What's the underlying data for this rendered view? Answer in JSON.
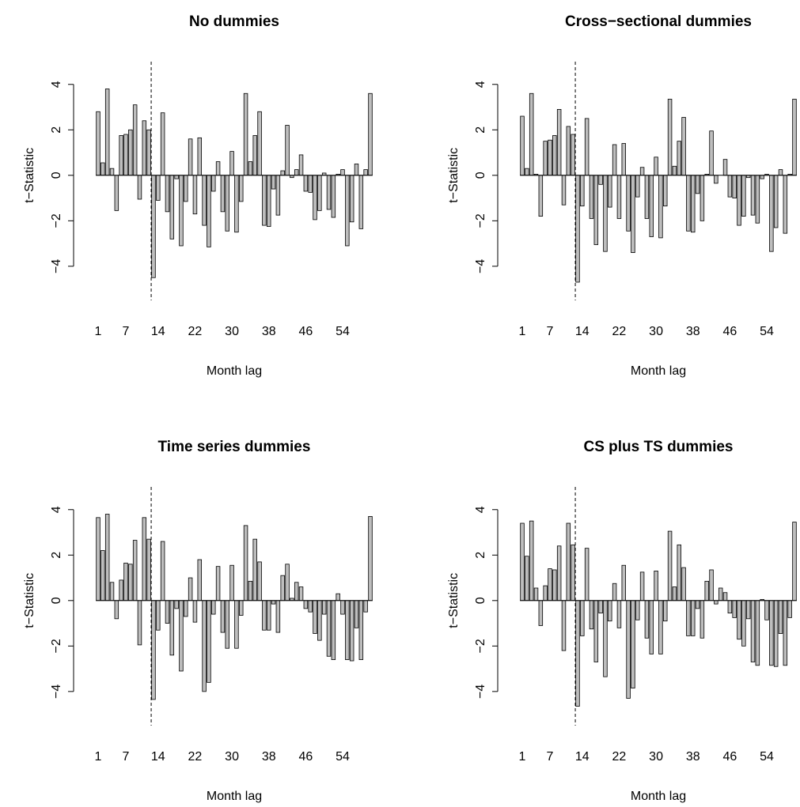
{
  "chart_data": [
    {
      "type": "bar",
      "title": "No dummies",
      "xlabel": "Month lag",
      "ylabel": "t−Statistic",
      "categories": [
        "1",
        null,
        null,
        null,
        null,
        null,
        "7",
        null,
        null,
        null,
        null,
        null,
        null,
        "14",
        null,
        null,
        null,
        null,
        null,
        null,
        null,
        "22",
        null,
        null,
        null,
        null,
        null,
        null,
        null,
        "30",
        null,
        null,
        null,
        null,
        null,
        null,
        null,
        "38",
        null,
        null,
        null,
        null,
        null,
        null,
        null,
        "46",
        null,
        null,
        null,
        null,
        null,
        null,
        null,
        "54",
        null,
        null,
        null,
        null,
        null,
        null
      ],
      "values": [
        2.8,
        0.55,
        3.8,
        0.3,
        -1.55,
        1.75,
        1.8,
        2.0,
        3.1,
        -1.05,
        2.4,
        2.0,
        -4.5,
        -1.1,
        2.75,
        -1.6,
        -2.8,
        -0.15,
        -3.1,
        -1.15,
        1.6,
        -1.7,
        1.65,
        -2.2,
        -3.15,
        -0.7,
        0.6,
        -1.6,
        -2.45,
        1.05,
        -2.5,
        -1.15,
        3.6,
        0.6,
        1.75,
        2.8,
        -2.2,
        -2.25,
        -0.6,
        -1.75,
        0.2,
        2.2,
        -0.1,
        0.25,
        0.9,
        -0.7,
        -0.75,
        -1.95,
        -1.55,
        0.1,
        -1.5,
        -1.85,
        0.05,
        0.25,
        -3.1,
        -2.05,
        0.5,
        -2.35,
        0.25,
        3.6
      ],
      "color": "#bebebe",
      "reference_line_x": 12.5,
      "ylim": [
        -5.5,
        5
      ],
      "yticks": [
        {
          "value": -4,
          "label": "−4"
        },
        {
          "value": -2,
          "label": "−2"
        },
        0,
        2,
        4
      ]
    },
    {
      "type": "bar",
      "title": "Cross−sectional dummies",
      "xlabel": "Month lag",
      "ylabel": "t−Statistic",
      "categories": [
        "1",
        null,
        null,
        null,
        null,
        null,
        "7",
        null,
        null,
        null,
        null,
        null,
        null,
        "14",
        null,
        null,
        null,
        null,
        null,
        null,
        null,
        "22",
        null,
        null,
        null,
        null,
        null,
        null,
        null,
        "30",
        null,
        null,
        null,
        null,
        null,
        null,
        null,
        "38",
        null,
        null,
        null,
        null,
        null,
        null,
        null,
        "46",
        null,
        null,
        null,
        null,
        null,
        null,
        null,
        "54",
        null,
        null,
        null,
        null,
        null,
        null
      ],
      "values": [
        2.6,
        0.3,
        3.6,
        0.05,
        -1.8,
        1.5,
        1.55,
        1.75,
        2.9,
        -1.3,
        2.15,
        1.8,
        -4.7,
        -1.35,
        2.5,
        -1.9,
        -3.05,
        -0.4,
        -3.35,
        -1.4,
        1.35,
        -1.9,
        1.4,
        -2.45,
        -3.4,
        -0.95,
        0.35,
        -1.9,
        -2.7,
        0.8,
        -2.75,
        -1.35,
        3.35,
        0.4,
        1.5,
        2.55,
        -2.45,
        -2.5,
        -0.8,
        -2.0,
        0.05,
        1.95,
        -0.35,
        0.0,
        0.7,
        -0.95,
        -1.0,
        -2.2,
        -1.8,
        -0.1,
        -1.75,
        -2.1,
        -0.15,
        0.05,
        -3.35,
        -2.3,
        0.25,
        -2.55,
        0.05,
        3.35
      ],
      "color": "#bebebe",
      "reference_line_x": 12.5,
      "ylim": [
        -5.5,
        5
      ],
      "yticks": [
        {
          "value": -4,
          "label": "−4"
        },
        {
          "value": -2,
          "label": "−2"
        },
        0,
        2,
        4
      ]
    },
    {
      "type": "bar",
      "title": "Time series dummies",
      "xlabel": "Month lag",
      "ylabel": "t−Statistic",
      "categories": [
        "1",
        null,
        null,
        null,
        null,
        null,
        "7",
        null,
        null,
        null,
        null,
        null,
        null,
        "14",
        null,
        null,
        null,
        null,
        null,
        null,
        null,
        "22",
        null,
        null,
        null,
        null,
        null,
        null,
        null,
        "30",
        null,
        null,
        null,
        null,
        null,
        null,
        null,
        "38",
        null,
        null,
        null,
        null,
        null,
        null,
        null,
        "46",
        null,
        null,
        null,
        null,
        null,
        null,
        null,
        "54",
        null,
        null,
        null,
        null,
        null,
        null
      ],
      "values": [
        3.65,
        2.2,
        3.8,
        0.8,
        -0.8,
        0.9,
        1.65,
        1.6,
        2.65,
        -1.95,
        3.65,
        2.7,
        -4.35,
        -1.3,
        2.6,
        -1.0,
        -2.4,
        -0.35,
        -3.1,
        -0.7,
        1.0,
        -0.95,
        1.8,
        -4.0,
        -3.6,
        -0.6,
        1.5,
        -1.4,
        -2.1,
        1.55,
        -2.1,
        -0.65,
        3.3,
        0.85,
        2.7,
        1.7,
        -1.3,
        -1.3,
        -0.15,
        -1.4,
        1.1,
        1.6,
        0.1,
        0.8,
        0.6,
        -0.35,
        -0.5,
        -1.45,
        -1.75,
        -0.6,
        -2.45,
        -2.6,
        0.3,
        -0.6,
        -2.6,
        -2.65,
        -1.2,
        -2.6,
        -0.5,
        3.7
      ],
      "color": "#bebebe",
      "reference_line_x": 12.5,
      "ylim": [
        -5.5,
        5
      ],
      "yticks": [
        {
          "value": -4,
          "label": "−4"
        },
        {
          "value": -2,
          "label": "−2"
        },
        0,
        2,
        4
      ]
    },
    {
      "type": "bar",
      "title": "CS plus TS dummies",
      "xlabel": "Month lag",
      "ylabel": "t−Statistic",
      "categories": [
        "1",
        null,
        null,
        null,
        null,
        null,
        "7",
        null,
        null,
        null,
        null,
        null,
        null,
        "14",
        null,
        null,
        null,
        null,
        null,
        null,
        null,
        "22",
        null,
        null,
        null,
        null,
        null,
        null,
        null,
        "30",
        null,
        null,
        null,
        null,
        null,
        null,
        null,
        "38",
        null,
        null,
        null,
        null,
        null,
        null,
        null,
        "46",
        null,
        null,
        null,
        null,
        null,
        null,
        null,
        "54",
        null,
        null,
        null,
        null,
        null,
        null
      ],
      "values": [
        3.4,
        1.95,
        3.5,
        0.55,
        -1.1,
        0.65,
        1.4,
        1.35,
        2.4,
        -2.2,
        3.4,
        2.45,
        -4.65,
        -1.55,
        2.3,
        -1.25,
        -2.7,
        -0.55,
        -3.35,
        -0.9,
        0.75,
        -1.2,
        1.55,
        -4.3,
        -3.85,
        -0.85,
        1.25,
        -1.65,
        -2.35,
        1.3,
        -2.35,
        -0.9,
        3.05,
        0.6,
        2.45,
        1.45,
        -1.55,
        -1.55,
        -0.35,
        -1.65,
        0.85,
        1.35,
        -0.15,
        0.55,
        0.35,
        -0.55,
        -0.75,
        -1.7,
        -2.0,
        -0.8,
        -2.7,
        -2.85,
        0.05,
        -0.85,
        -2.85,
        -2.9,
        -1.45,
        -2.85,
        -0.75,
        3.45
      ],
      "color": "#bebebe",
      "reference_line_x": 12.5,
      "ylim": [
        -5.5,
        5
      ],
      "yticks": [
        {
          "value": -4,
          "label": "−4"
        },
        {
          "value": -2,
          "label": "−2"
        },
        0,
        2,
        4
      ]
    }
  ]
}
